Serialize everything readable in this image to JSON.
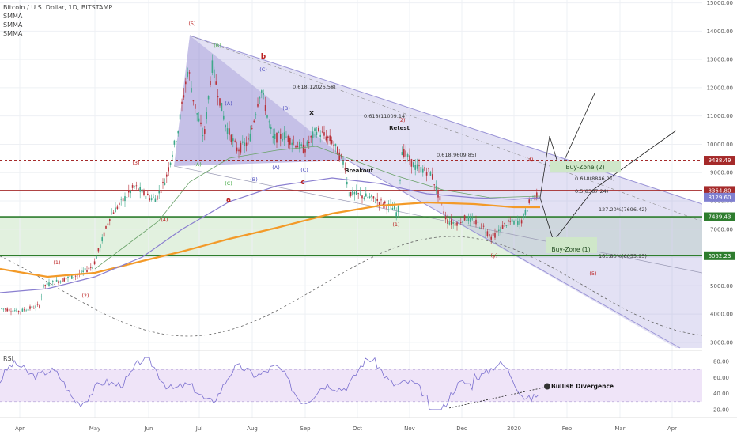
{
  "header": {
    "symbol_line": "Bitcoin / U.S. Dollar, 1D, BITSTAMP",
    "ind1": "SMMA",
    "ind2": "SMMA",
    "ind3": "SMMA"
  },
  "colors": {
    "up": "#3ea88a",
    "down": "#b8323b",
    "smma_orange": "#f39a28",
    "smma_purple": "#8a7fd0",
    "smma_green": "#6aa26a",
    "triangle": "#8c84cf",
    "channel": "#9a94d6",
    "zone_green": "#d8ecd4",
    "line_red": "#a52a2a",
    "line_green": "#2e7d2e",
    "rsi_band": "#efe4f8",
    "rsi_line": "#7a6fcf"
  },
  "chart_data": {
    "type": "candlestick",
    "title": "Bitcoin / U.S. Dollar, 1D, BITSTAMP",
    "x_ticks": [
      "Apr",
      "May",
      "Jun",
      "Jul",
      "Aug",
      "Sep",
      "Oct",
      "Nov",
      "Dec",
      "2020",
      "Feb",
      "Mar",
      "Apr"
    ],
    "y_ticks": [
      3000,
      4000,
      5000,
      6000,
      7000,
      8000,
      9000,
      10000,
      11000,
      12000,
      13000,
      14000,
      15000
    ],
    "y_tick_labels": [
      "3000.00",
      "4000.00",
      "5000.00",
      "6000.00",
      "7000.00",
      "8000.00",
      "9000.00",
      "10000.00",
      "11000.00",
      "12000.00",
      "13000.00",
      "14000.00",
      "15000.00"
    ],
    "ylim": [
      2800,
      15100
    ],
    "price_levels": [
      {
        "label": "9438.49",
        "value": 9438.49,
        "color": "#a52a2a",
        "style": "dashed"
      },
      {
        "label": "8364.80",
        "value": 8364.8,
        "color": "#a52a2a",
        "style": "solid"
      },
      {
        "label": "8129.60",
        "value": 8129.6,
        "color": "#7f7fd0",
        "style": "badge"
      },
      {
        "label": "7439.43",
        "value": 7439.43,
        "color": "#2e7d2e",
        "style": "solid"
      },
      {
        "label": "6062.23",
        "value": 6062.23,
        "color": "#2e7d2e",
        "style": "solid"
      }
    ],
    "zones": [
      {
        "label": "Buy-Zone (1)",
        "from": 6062.23,
        "to": 7439.43
      },
      {
        "label": "Buy-Zone (2)",
        "from": 9000,
        "to": 9400
      }
    ],
    "fib_labels": [
      "0.618(12026.58)",
      "0.618(11009.14)",
      "0.618(9609.85)",
      "0.618(8846.21)",
      "0.5(8387.24)",
      "127.20%(7696.42)",
      "161.80%(6055.95)"
    ],
    "wave_labels": [
      "(5)",
      "(B)",
      "b",
      "(C)",
      "(A)",
      "(B)",
      "x",
      "(A)",
      "(C)",
      "(A)",
      "(2)",
      "(3)",
      "(4)",
      "(1)",
      "(2)",
      "(C)",
      "(B)",
      "a",
      "c",
      "(1)",
      "(4)",
      "(5)",
      "(y)"
    ],
    "annotations": [
      "Breakout",
      "Retest",
      "Bullish Divergence"
    ],
    "rsi": {
      "label": "RSI",
      "ticks": [
        "80.00",
        "60.00",
        "40.00",
        "20.00"
      ],
      "ylim": [
        10,
        90
      ],
      "band": [
        30,
        70
      ]
    }
  }
}
